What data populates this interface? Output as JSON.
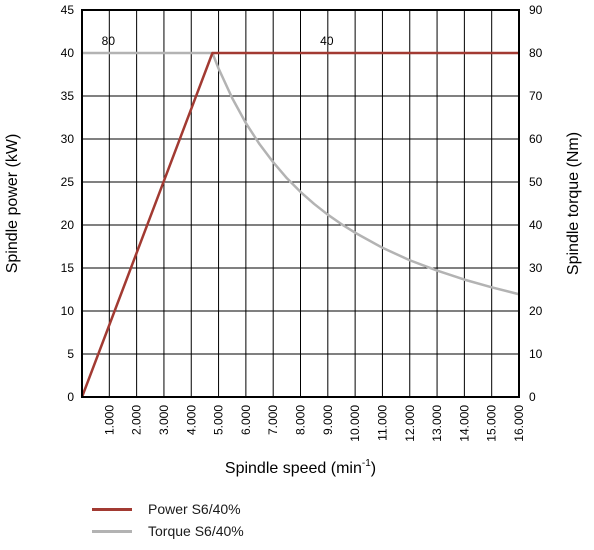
{
  "chart_data": {
    "type": "line",
    "xlabel": "Spindle speed (min",
    "xlabel_sup": "-1",
    "xlabel_close": ")",
    "ylabel_left": "Spindle power (kW)",
    "ylabel_right": "Spindle torque (Nm)",
    "xlim": [
      0,
      16000
    ],
    "ylim_left": [
      0,
      45
    ],
    "ylim_right": [
      0,
      90
    ],
    "x_ticks": [
      1000,
      2000,
      3000,
      4000,
      5000,
      6000,
      7000,
      8000,
      9000,
      10000,
      11000,
      12000,
      13000,
      14000,
      15000,
      16000
    ],
    "x_tick_labels": [
      "1.000",
      "2.000",
      "3.000",
      "4.000",
      "5.000",
      "6.000",
      "7.000",
      "8.000",
      "9.000",
      "10.000",
      "11.000",
      "12.000",
      "13.000",
      "14.000",
      "15.000",
      "16.000"
    ],
    "left_ticks": [
      0,
      5,
      10,
      15,
      20,
      25,
      30,
      35,
      40,
      45
    ],
    "left_tick_labels": [
      "0",
      "5",
      "10",
      "15",
      "20",
      "25",
      "30",
      "35",
      "40",
      "45"
    ],
    "right_ticks": [
      0,
      10,
      20,
      30,
      40,
      50,
      60,
      70,
      80,
      90
    ],
    "right_tick_labels": [
      "0",
      "10",
      "20",
      "30",
      "40",
      "50",
      "60",
      "70",
      "80",
      "90"
    ],
    "grid": true,
    "legend_position": "bottom-left",
    "series": [
      {
        "name": "Power S6/40%",
        "axis": "left",
        "color": "#a23a32",
        "x": [
          0,
          4775,
          16000
        ],
        "y": [
          0,
          40,
          40
        ]
      },
      {
        "name": "Torque S6/40%",
        "axis": "right",
        "color": "#b3b3b3",
        "x": [
          0,
          4775,
          5000,
          5500,
          6000,
          6500,
          7000,
          7500,
          8000,
          8500,
          9000,
          9500,
          10000,
          11000,
          12000,
          13000,
          14000,
          15000,
          16000
        ],
        "y": [
          80,
          80,
          76.4,
          69.5,
          63.7,
          58.8,
          54.6,
          50.9,
          47.7,
          44.9,
          42.4,
          40.2,
          38.2,
          34.7,
          31.8,
          29.4,
          27.3,
          25.5,
          23.9
        ]
      }
    ],
    "annotations": [
      {
        "text": "80",
        "x": 500,
        "axis": "right",
        "y": 80
      },
      {
        "text": "40",
        "x": 8500,
        "axis": "left",
        "y": 40
      }
    ]
  }
}
